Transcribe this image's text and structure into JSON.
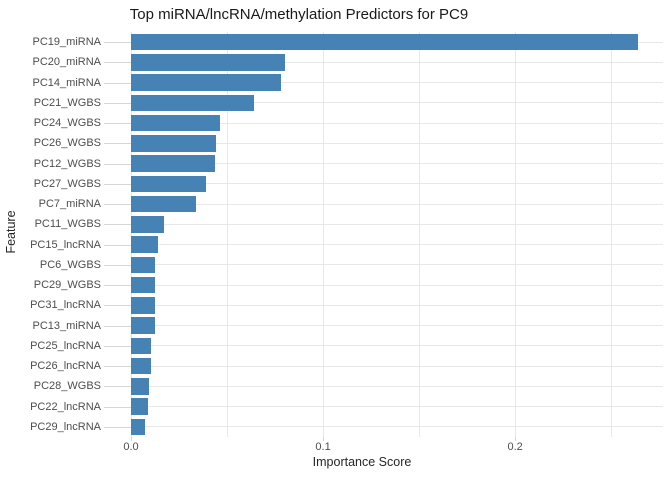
{
  "chart_data": {
    "type": "bar",
    "orientation": "horizontal",
    "title": "Top miRNA/lncRNA/methylation Predictors for PC9",
    "xlabel": "Importance Score",
    "ylabel": "Feature",
    "categories": [
      "PC19_miRNA",
      "PC20_miRNA",
      "PC14_miRNA",
      "PC21_WGBS",
      "PC24_WGBS",
      "PC26_WGBS",
      "PC12_WGBS",
      "PC27_WGBS",
      "PC7_miRNA",
      "PC11_WGBS",
      "PC15_lncRNA",
      "PC6_WGBS",
      "PC29_WGBS",
      "PC31_lncRNA",
      "PC13_miRNA",
      "PC25_lncRNA",
      "PC26_lncRNA",
      "PC28_WGBS",
      "PC22_lncRNA",
      "PC29_lncRNA"
    ],
    "values": [
      0.264,
      0.08,
      0.0781,
      0.0643,
      0.0465,
      0.044,
      0.0435,
      0.0392,
      0.034,
      0.0174,
      0.0138,
      0.0127,
      0.0126,
      0.0125,
      0.0123,
      0.0105,
      0.0103,
      0.0094,
      0.0089,
      0.0075
    ],
    "xlim": [
      0,
      0.277
    ],
    "x_ticks": [
      {
        "label": "0.0",
        "value": 0.0
      },
      {
        "label": "0.1",
        "value": 0.1
      },
      {
        "label": "0.2",
        "value": 0.2
      }
    ],
    "gridline_values": [
      0.0,
      0.05,
      0.1,
      0.15,
      0.2,
      0.25
    ],
    "grid": true,
    "legend_position": "none"
  },
  "style": {
    "bar_color": "#4682B4",
    "grid_color": "#e8e8e8",
    "tick_mark_color": "#d6d6d6",
    "tick_text_color": "#4d4d4d",
    "axis_title_color": "#262626",
    "title_color": "#1a1a1a",
    "background_color": "#ffffff"
  }
}
